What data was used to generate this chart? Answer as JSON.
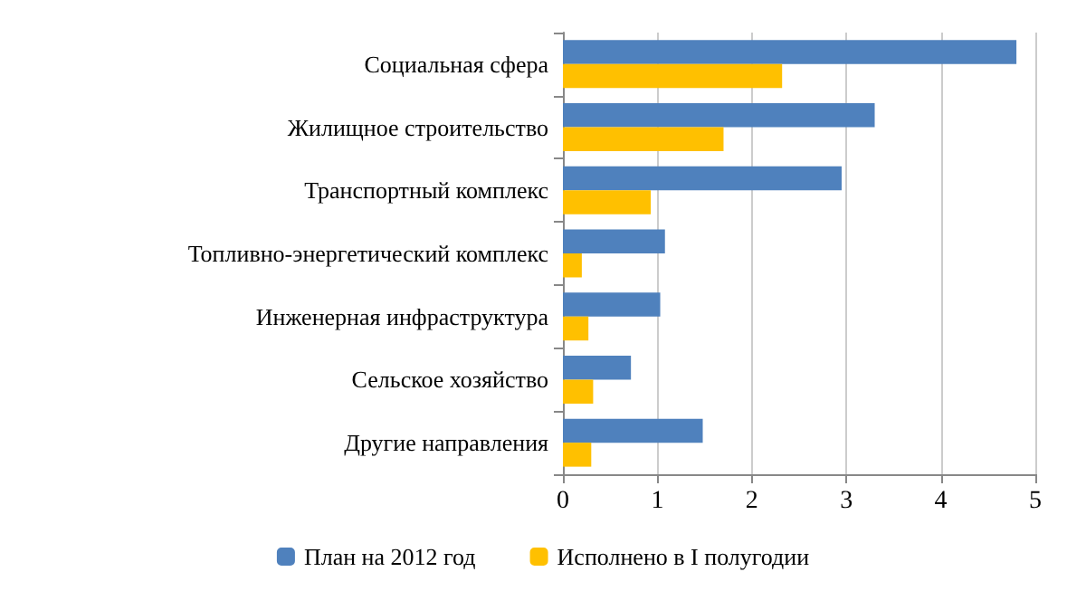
{
  "chart_data": {
    "type": "bar",
    "orientation": "horizontal",
    "categories": [
      "Социальная сфера",
      "Жилищное строительство",
      "Транспортный комплекс",
      "Топливно-энергетический комплекс",
      "Инженерная инфраструктура",
      "Сельское хозяйство",
      "Другие направления"
    ],
    "series": [
      {
        "name": "План на 2012 год",
        "color": "#4f81bd",
        "values": [
          4.8,
          3.3,
          2.95,
          1.08,
          1.03,
          0.72,
          1.48
        ]
      },
      {
        "name": "Исполнено в I полугодии",
        "color": "#ffc000",
        "values": [
          2.32,
          1.7,
          0.93,
          0.2,
          0.27,
          0.32,
          0.3
        ]
      }
    ],
    "xlim": [
      0,
      5
    ],
    "xticks": [
      0,
      1,
      2,
      3,
      4,
      5
    ],
    "grid": "x",
    "legend": "bottom"
  }
}
